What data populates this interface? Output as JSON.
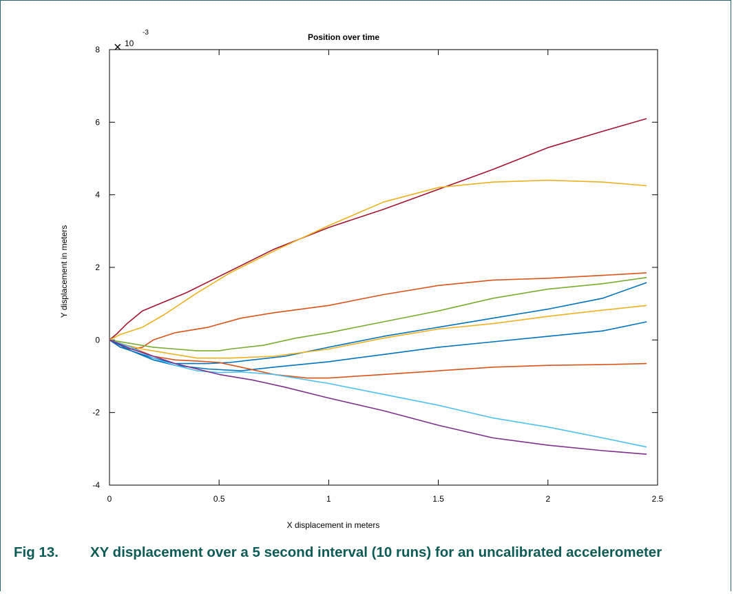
{
  "chart_data": {
    "type": "line",
    "title": "Position over time",
    "xlabel": "X displacement in meters",
    "ylabel": "Y displacement in meters",
    "y_exponent_label": "10",
    "y_exponent_power": "-3",
    "xlim": [
      0,
      2.5
    ],
    "ylim": [
      -4,
      8
    ],
    "x_ticks": [
      "0",
      "0.5",
      "1",
      "1.5",
      "2",
      "2.5"
    ],
    "y_ticks": [
      "-4",
      "-2",
      "0",
      "2",
      "4",
      "6",
      "8"
    ],
    "grid": false,
    "legend": "none",
    "series": [
      {
        "color": "#a2142f",
        "points": [
          [
            0,
            0
          ],
          [
            0.03,
            0.15
          ],
          [
            0.08,
            0.45
          ],
          [
            0.15,
            0.8
          ],
          [
            0.25,
            1.05
          ],
          [
            0.35,
            1.3
          ],
          [
            0.5,
            1.75
          ],
          [
            0.75,
            2.5
          ],
          [
            1.0,
            3.1
          ],
          [
            1.25,
            3.6
          ],
          [
            1.5,
            4.15
          ],
          [
            1.75,
            4.7
          ],
          [
            2.0,
            5.3
          ],
          [
            2.25,
            5.75
          ],
          [
            2.45,
            6.1
          ]
        ]
      },
      {
        "color": "#edb120",
        "points": [
          [
            0,
            0
          ],
          [
            0.05,
            0.15
          ],
          [
            0.15,
            0.35
          ],
          [
            0.25,
            0.7
          ],
          [
            0.4,
            1.3
          ],
          [
            0.55,
            1.85
          ],
          [
            0.75,
            2.45
          ],
          [
            1.0,
            3.15
          ],
          [
            1.25,
            3.8
          ],
          [
            1.5,
            4.2
          ],
          [
            1.75,
            4.35
          ],
          [
            2.0,
            4.4
          ],
          [
            2.25,
            4.35
          ],
          [
            2.45,
            4.25
          ]
        ]
      },
      {
        "color": "#d95319",
        "points": [
          [
            0,
            0
          ],
          [
            0.05,
            -0.2
          ],
          [
            0.1,
            -0.25
          ],
          [
            0.15,
            -0.2
          ],
          [
            0.2,
            0.0
          ],
          [
            0.3,
            0.2
          ],
          [
            0.45,
            0.35
          ],
          [
            0.6,
            0.6
          ],
          [
            0.75,
            0.75
          ],
          [
            1.0,
            0.95
          ],
          [
            1.25,
            1.25
          ],
          [
            1.5,
            1.5
          ],
          [
            1.75,
            1.65
          ],
          [
            2.0,
            1.7
          ],
          [
            2.25,
            1.78
          ],
          [
            2.45,
            1.85
          ]
        ]
      },
      {
        "color": "#77ac30",
        "points": [
          [
            0,
            0
          ],
          [
            0.1,
            -0.1
          ],
          [
            0.2,
            -0.2
          ],
          [
            0.3,
            -0.25
          ],
          [
            0.4,
            -0.3
          ],
          [
            0.5,
            -0.3
          ],
          [
            0.55,
            -0.25
          ],
          [
            0.7,
            -0.15
          ],
          [
            0.85,
            0.05
          ],
          [
            1.0,
            0.2
          ],
          [
            1.25,
            0.5
          ],
          [
            1.5,
            0.8
          ],
          [
            1.75,
            1.15
          ],
          [
            2.0,
            1.4
          ],
          [
            2.25,
            1.55
          ],
          [
            2.45,
            1.72
          ]
        ]
      },
      {
        "color": "#0072bd",
        "points": [
          [
            0,
            0
          ],
          [
            0.05,
            -0.2
          ],
          [
            0.1,
            -0.3
          ],
          [
            0.2,
            -0.5
          ],
          [
            0.3,
            -0.65
          ],
          [
            0.45,
            -0.65
          ],
          [
            0.55,
            -0.62
          ],
          [
            0.65,
            -0.55
          ],
          [
            0.8,
            -0.45
          ],
          [
            1.0,
            -0.2
          ],
          [
            1.25,
            0.1
          ],
          [
            1.5,
            0.35
          ],
          [
            1.75,
            0.6
          ],
          [
            2.0,
            0.85
          ],
          [
            2.25,
            1.15
          ],
          [
            2.45,
            1.58
          ]
        ]
      },
      {
        "color": "#edb120",
        "points": [
          [
            0,
            0
          ],
          [
            0.08,
            -0.15
          ],
          [
            0.15,
            -0.25
          ],
          [
            0.25,
            -0.35
          ],
          [
            0.4,
            -0.5
          ],
          [
            0.55,
            -0.5
          ],
          [
            0.75,
            -0.45
          ],
          [
            1.0,
            -0.25
          ],
          [
            1.25,
            0.05
          ],
          [
            1.5,
            0.3
          ],
          [
            1.75,
            0.45
          ],
          [
            2.0,
            0.65
          ],
          [
            2.25,
            0.82
          ],
          [
            2.45,
            0.95
          ]
        ]
      },
      {
        "color": "#0072bd",
        "points": [
          [
            0,
            0
          ],
          [
            0.1,
            -0.3
          ],
          [
            0.2,
            -0.55
          ],
          [
            0.3,
            -0.7
          ],
          [
            0.45,
            -0.8
          ],
          [
            0.6,
            -0.85
          ],
          [
            0.75,
            -0.75
          ],
          [
            1.0,
            -0.6
          ],
          [
            1.25,
            -0.4
          ],
          [
            1.5,
            -0.2
          ],
          [
            1.75,
            -0.05
          ],
          [
            2.0,
            0.1
          ],
          [
            2.25,
            0.25
          ],
          [
            2.45,
            0.5
          ]
        ]
      },
      {
        "color": "#d95319",
        "points": [
          [
            0,
            0
          ],
          [
            0.1,
            -0.2
          ],
          [
            0.2,
            -0.45
          ],
          [
            0.3,
            -0.55
          ],
          [
            0.4,
            -0.58
          ],
          [
            0.5,
            -0.62
          ],
          [
            0.6,
            -0.75
          ],
          [
            0.75,
            -0.95
          ],
          [
            0.9,
            -1.05
          ],
          [
            1.0,
            -1.05
          ],
          [
            1.25,
            -0.95
          ],
          [
            1.5,
            -0.85
          ],
          [
            1.75,
            -0.75
          ],
          [
            2.0,
            -0.7
          ],
          [
            2.25,
            -0.68
          ],
          [
            2.45,
            -0.65
          ]
        ]
      },
      {
        "color": "#4dbeee",
        "points": [
          [
            0,
            0
          ],
          [
            0.1,
            -0.2
          ],
          [
            0.2,
            -0.5
          ],
          [
            0.3,
            -0.7
          ],
          [
            0.4,
            -0.85
          ],
          [
            0.5,
            -0.9
          ],
          [
            0.6,
            -0.88
          ],
          [
            0.75,
            -0.95
          ],
          [
            1.0,
            -1.2
          ],
          [
            1.25,
            -1.5
          ],
          [
            1.5,
            -1.8
          ],
          [
            1.75,
            -2.15
          ],
          [
            2.0,
            -2.4
          ],
          [
            2.25,
            -2.7
          ],
          [
            2.45,
            -2.95
          ]
        ]
      },
      {
        "color": "#7e2f8e",
        "points": [
          [
            0,
            0
          ],
          [
            0.1,
            -0.25
          ],
          [
            0.2,
            -0.45
          ],
          [
            0.3,
            -0.65
          ],
          [
            0.4,
            -0.8
          ],
          [
            0.5,
            -0.95
          ],
          [
            0.65,
            -1.1
          ],
          [
            0.8,
            -1.3
          ],
          [
            1.0,
            -1.6
          ],
          [
            1.25,
            -1.95
          ],
          [
            1.5,
            -2.35
          ],
          [
            1.75,
            -2.7
          ],
          [
            2.0,
            -2.9
          ],
          [
            2.25,
            -3.05
          ],
          [
            2.45,
            -3.15
          ]
        ]
      }
    ]
  },
  "caption": {
    "number": "Fig 13.",
    "text": "XY displacement over a 5 second interval (10 runs) for an uncalibrated accelerometer"
  }
}
